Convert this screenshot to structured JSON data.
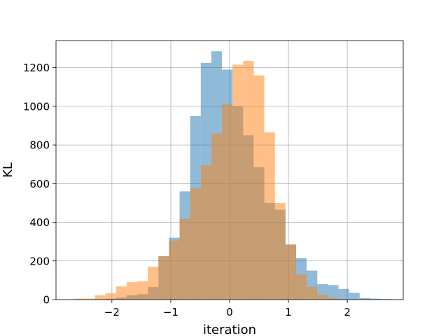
{
  "chart_data": {
    "type": "bar",
    "title": "",
    "xlabel": "iteration",
    "ylabel": "KL",
    "xlim": [
      -2.95,
      2.95
    ],
    "ylim": [
      0,
      1340
    ],
    "grid": true,
    "xticks": [
      -2,
      -1,
      0,
      1,
      2
    ],
    "xtick_labels": [
      "−2",
      "−1",
      "0",
      "1",
      "2"
    ],
    "yticks": [
      0,
      200,
      400,
      600,
      800,
      1000,
      1200
    ],
    "ytick_labels": [
      "0",
      "200",
      "400",
      "600",
      "800",
      "1000",
      "1200"
    ],
    "series": [
      {
        "color": "#1f77b4",
        "alpha": 0.5,
        "bin_edges": [
          -2.29,
          -2.11,
          -1.93,
          -1.75,
          -1.57,
          -1.39,
          -1.21,
          -1.03,
          -0.85,
          -0.67,
          -0.49,
          -0.31,
          -0.13,
          0.05,
          0.23,
          0.41,
          0.59,
          0.77,
          0.95,
          1.13,
          1.31,
          1.49,
          1.67,
          1.85,
          2.03,
          2.21,
          2.39,
          2.57,
          2.75
        ],
        "values": [
          3,
          5,
          11,
          22,
          28,
          65,
          225,
          320,
          560,
          950,
          1225,
          1285,
          1190,
          1000,
          850,
          685,
          500,
          465,
          285,
          215,
          150,
          80,
          75,
          55,
          35,
          8,
          5,
          3
        ]
      },
      {
        "color": "#ff7f0e",
        "alpha": 0.5,
        "bin_edges": [
          -2.65,
          -2.47,
          -2.29,
          -2.11,
          -1.93,
          -1.75,
          -1.57,
          -1.39,
          -1.21,
          -1.03,
          -0.85,
          -0.67,
          -0.49,
          -0.31,
          -0.13,
          0.05,
          0.23,
          0.41,
          0.59,
          0.77,
          0.95,
          1.13,
          1.31,
          1.49,
          1.67,
          1.85,
          2.03
        ],
        "values": [
          5,
          5,
          22,
          33,
          68,
          90,
          95,
          170,
          225,
          305,
          418,
          575,
          695,
          860,
          1010,
          1215,
          1235,
          1160,
          865,
          500,
          285,
          130,
          65,
          25,
          8,
          3
        ]
      }
    ]
  }
}
